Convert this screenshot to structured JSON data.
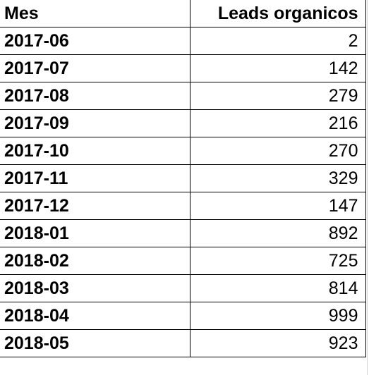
{
  "table": {
    "headers": {
      "mes": "Mes",
      "leads": "Leads organicos"
    },
    "rows": [
      {
        "mes": "2017-06",
        "leads": "2"
      },
      {
        "mes": "2017-07",
        "leads": "142"
      },
      {
        "mes": "2017-08",
        "leads": "279"
      },
      {
        "mes": "2017-09",
        "leads": "216"
      },
      {
        "mes": "2017-10",
        "leads": "270"
      },
      {
        "mes": "2017-11",
        "leads": "329"
      },
      {
        "mes": "2017-12",
        "leads": "147"
      },
      {
        "mes": "2018-01",
        "leads": "892"
      },
      {
        "mes": "2018-02",
        "leads": "725"
      },
      {
        "mes": "2018-03",
        "leads": "814"
      },
      {
        "mes": "2018-04",
        "leads": "999"
      },
      {
        "mes": "2018-05",
        "leads": "923"
      }
    ]
  }
}
